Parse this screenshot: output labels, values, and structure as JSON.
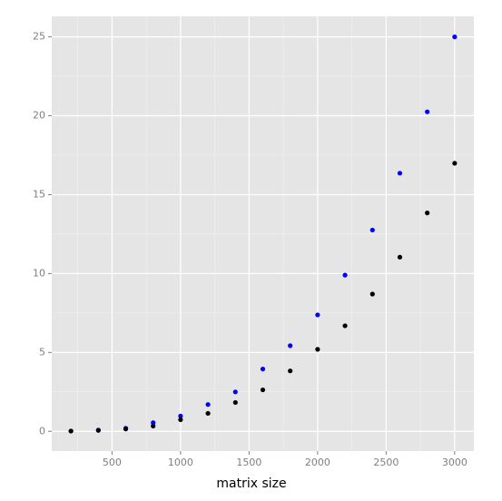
{
  "chart_data": {
    "type": "scatter",
    "x_label": "matrix size",
    "x": [
      200,
      400,
      600,
      800,
      1000,
      1200,
      1400,
      1600,
      1800,
      2000,
      2200,
      2400,
      2600,
      2800,
      3000
    ],
    "series": [
      {
        "color": "#0000ff",
        "values": [
          0.02,
          0.08,
          0.2,
          0.55,
          0.97,
          1.7,
          2.5,
          3.95,
          5.43,
          7.38,
          9.9,
          12.76,
          16.36,
          20.25,
          25.0
        ]
      },
      {
        "color": "#000000",
        "values": [
          0.02,
          0.06,
          0.15,
          0.34,
          0.74,
          1.14,
          1.83,
          2.63,
          3.83,
          5.2,
          6.69,
          8.7,
          11.04,
          13.84,
          16.99
        ]
      }
    ],
    "xlim": [
      60,
      3140
    ],
    "ylim": [
      -1.25,
      26.3
    ],
    "xticks": [
      500,
      1000,
      1500,
      2000,
      2500,
      3000
    ],
    "yticks": [
      0,
      5,
      10,
      15,
      20,
      25
    ],
    "grid": true
  }
}
